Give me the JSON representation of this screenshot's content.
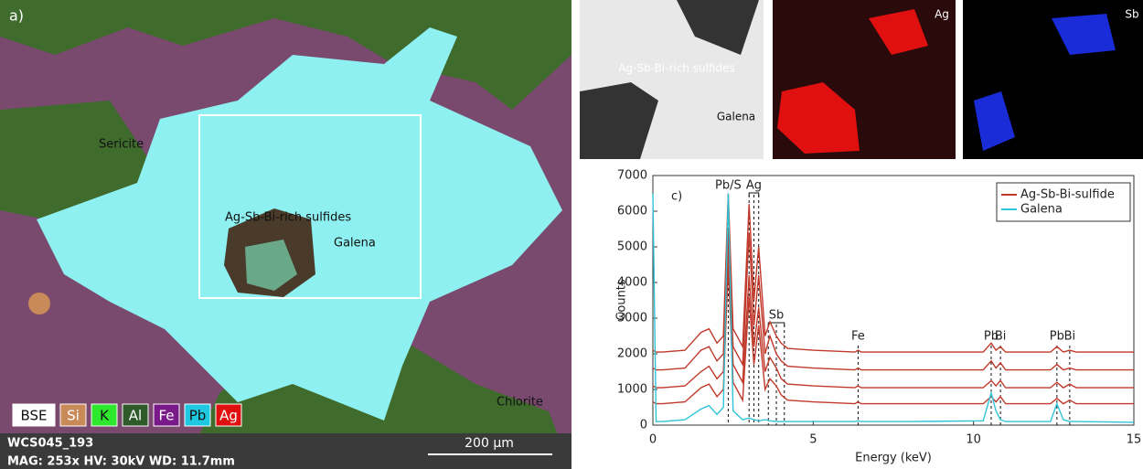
{
  "micrograph": {
    "panel_label": "a)",
    "labels": [
      "Sericite",
      "Ag-Sb-Bi-rich sulfides",
      "Galena",
      "Chlorite"
    ],
    "elements": [
      "BSE",
      "Si",
      "K",
      "Al",
      "Fe",
      "Pb",
      "Ag"
    ],
    "sample": "WCS045_193",
    "settings": "MAG: 253x   HV: 30kV   WD: 11.7mm",
    "scale_bar": "200 µm"
  },
  "maps": {
    "bse_labels": [
      "Ag-Sb-Bi-rich sulfides",
      "Galena"
    ],
    "ag": "Ag",
    "sb": "Sb"
  },
  "chart_data": {
    "type": "line",
    "panel_label": "c)",
    "xlabel": "Energy (keV)",
    "ylabel": "Counts",
    "x": [
      0,
      0.1,
      0.3,
      1.0,
      1.5,
      1.75,
      2.0,
      2.2,
      2.35,
      2.5,
      2.8,
      3.0,
      3.15,
      3.3,
      3.5,
      3.65,
      3.85,
      4.0,
      4.2,
      5,
      6.3,
      6.4,
      6.5,
      8,
      10.3,
      10.55,
      10.7,
      10.84,
      11,
      12.4,
      12.6,
      12.8,
      13.0,
      13.2,
      15
    ],
    "series": [
      {
        "name": "Ag-Sb-Bi-sulfide",
        "color": "#c0392b",
        "values": [
          2100,
          2050,
          2050,
          2100,
          2600,
          2700,
          2300,
          2500,
          6500,
          2700,
          2200,
          6200,
          3500,
          5000,
          2500,
          2900,
          2500,
          2300,
          2150,
          2100,
          2050,
          2100,
          2050,
          2050,
          2050,
          2300,
          2100,
          2200,
          2050,
          2050,
          2200,
          2050,
          2100,
          2050,
          2050
        ]
      },
      {
        "name": "Ag-Sb-Bi-sulfide",
        "color": "#c0392b",
        "values": [
          1600,
          1550,
          1550,
          1600,
          2100,
          2200,
          1800,
          2000,
          5500,
          2200,
          1700,
          5400,
          2800,
          4200,
          2000,
          2500,
          2000,
          1800,
          1650,
          1600,
          1550,
          1600,
          1550,
          1550,
          1550,
          1800,
          1600,
          1750,
          1550,
          1550,
          1700,
          1550,
          1600,
          1550,
          1550
        ]
      },
      {
        "name": "Ag-Sb-Bi-sulfide",
        "color": "#c0392b",
        "values": [
          1100,
          1050,
          1050,
          1100,
          1500,
          1650,
          1300,
          1500,
          5000,
          1700,
          1200,
          4200,
          2200,
          3300,
          1500,
          1900,
          1600,
          1300,
          1150,
          1100,
          1050,
          1100,
          1050,
          1050,
          1050,
          1250,
          1100,
          1250,
          1050,
          1050,
          1200,
          1050,
          1150,
          1050,
          1050
        ]
      },
      {
        "name": "Ag-Sb-Bi-sulfide",
        "color": "#c0392b",
        "values": [
          650,
          600,
          600,
          650,
          1050,
          1150,
          800,
          1000,
          4500,
          1200,
          700,
          3600,
          1700,
          2800,
          1000,
          1300,
          1100,
          850,
          700,
          650,
          600,
          650,
          600,
          600,
          600,
          800,
          650,
          800,
          600,
          600,
          750,
          600,
          700,
          600,
          600
        ]
      },
      {
        "name": "Galena",
        "color": "#2ec4d6",
        "values": [
          6500,
          100,
          100,
          150,
          450,
          550,
          300,
          500,
          6500,
          400,
          150,
          200,
          150,
          120,
          150,
          120,
          100,
          100,
          100,
          100,
          100,
          120,
          100,
          100,
          120,
          900,
          400,
          150,
          100,
          100,
          600,
          150,
          100,
          100,
          80
        ]
      }
    ],
    "annotations": [
      {
        "label": "Pb/S",
        "x": [
          2.35
        ]
      },
      {
        "label": "Ag",
        "x": [
          3.0,
          3.15,
          3.3
        ]
      },
      {
        "label": "Sb",
        "x": [
          3.6,
          3.85,
          4.1
        ]
      },
      {
        "label": "Fe",
        "x": [
          6.4
        ]
      },
      {
        "label": "Pb",
        "x": [
          10.55
        ]
      },
      {
        "label": "Bi",
        "x": [
          10.84
        ]
      },
      {
        "label": "Pb",
        "x": [
          12.6
        ]
      },
      {
        "label": "Bi",
        "x": [
          13.0
        ]
      }
    ],
    "xlim": [
      0,
      15
    ],
    "xticks": [
      0,
      5,
      10,
      15
    ],
    "ylim": [
      0,
      7000
    ],
    "yticks": [
      0,
      1000,
      2000,
      3000,
      4000,
      5000,
      6000,
      7000
    ],
    "legend": "upper right"
  }
}
